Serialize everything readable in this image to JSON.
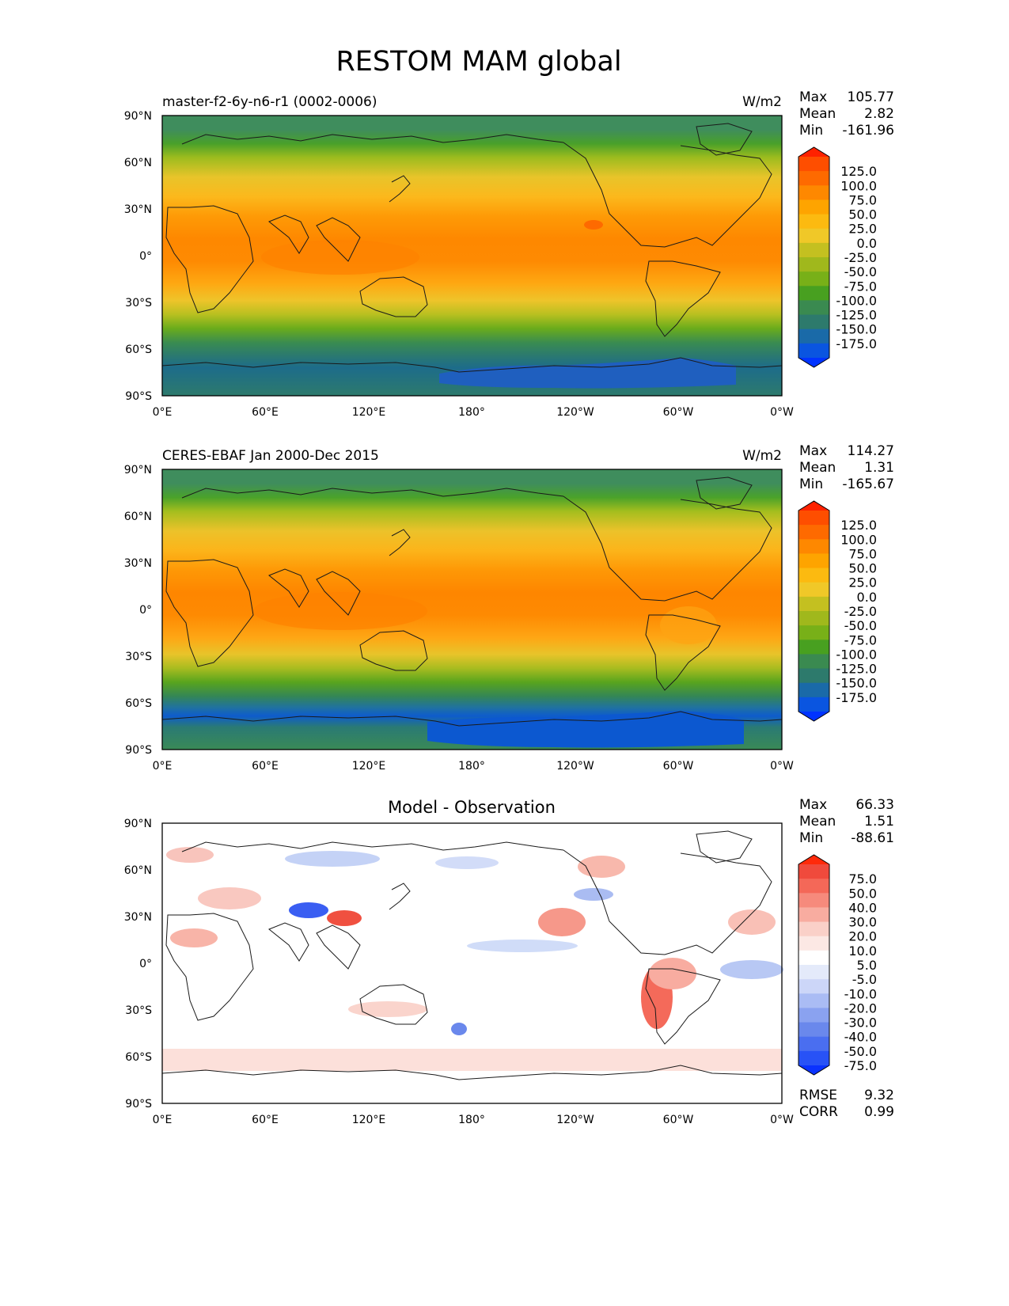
{
  "figure": {
    "title": "RESTOM MAM global"
  },
  "axes": {
    "lon_ticks": [
      "0°E",
      "60°E",
      "120°E",
      "180°",
      "120°W",
      "60°W",
      "0°W"
    ],
    "lat_ticks": [
      "90°N",
      "60°N",
      "30°N",
      "0°",
      "30°S",
      "60°S",
      "90°S"
    ]
  },
  "panels": [
    {
      "title_left": "master-f2-6y-n6-r1 (0002-0006)",
      "title_center": "",
      "units": "W/m2",
      "stats": [
        {
          "label": "Max",
          "value": "105.77"
        },
        {
          "label": "Mean",
          "value": "2.82"
        },
        {
          "label": "Min",
          "value": "-161.96"
        }
      ],
      "colorbar": {
        "labels": [
          "125.0",
          "100.0",
          "75.0",
          "50.0",
          "25.0",
          "0.0",
          "-25.0",
          "-50.0",
          "-75.0",
          "-100.0",
          "-125.0",
          "-150.0",
          "-175.0"
        ],
        "colors": [
          "#fe2200",
          "#fe4e00",
          "#fe6a00",
          "#fe8800",
          "#fea400",
          "#fcba10",
          "#f0c828",
          "#c4c020",
          "#a0b81c",
          "#78b018",
          "#48a020",
          "#3a8a50",
          "#2d7a6c",
          "#1a6aa8",
          "#0a55e0",
          "#0033ff"
        ]
      },
      "footer_stats": []
    },
    {
      "title_left": "CERES-EBAF Jan 2000-Dec 2015",
      "title_center": "",
      "units": "W/m2",
      "stats": [
        {
          "label": "Max",
          "value": "114.27"
        },
        {
          "label": "Mean",
          "value": "1.31"
        },
        {
          "label": "Min",
          "value": "-165.67"
        }
      ],
      "colorbar": {
        "labels": [
          "125.0",
          "100.0",
          "75.0",
          "50.0",
          "25.0",
          "0.0",
          "-25.0",
          "-50.0",
          "-75.0",
          "-100.0",
          "-125.0",
          "-150.0",
          "-175.0"
        ],
        "colors": [
          "#fe2200",
          "#fe4e00",
          "#fe6a00",
          "#fe8800",
          "#fea400",
          "#fcba10",
          "#f0c828",
          "#c4c020",
          "#a0b81c",
          "#78b018",
          "#48a020",
          "#3a8a50",
          "#2d7a6c",
          "#1a6aa8",
          "#0a55e0",
          "#0033ff"
        ]
      },
      "footer_stats": []
    },
    {
      "title_left": "",
      "title_center": "Model - Observation",
      "units": "",
      "stats": [
        {
          "label": "Max",
          "value": "66.33"
        },
        {
          "label": "Mean",
          "value": "1.51"
        },
        {
          "label": "Min",
          "value": "-88.61"
        }
      ],
      "colorbar": {
        "labels": [
          "75.0",
          "50.0",
          "40.0",
          "30.0",
          "20.0",
          "10.0",
          "5.0",
          "-5.0",
          "-10.0",
          "-20.0",
          "-30.0",
          "-40.0",
          "-50.0",
          "-75.0"
        ],
        "colors": [
          "#ff2a0a",
          "#f04a3c",
          "#f46858",
          "#f68a7c",
          "#f8aca0",
          "#fad0c8",
          "#fce8e4",
          "#ffffff",
          "#e4eafa",
          "#ccd6f8",
          "#aabcf4",
          "#8aa2f0",
          "#6a88ec",
          "#4a6ef0",
          "#2852f6",
          "#0a32ff"
        ]
      },
      "footer_stats": [
        {
          "label": "RMSE",
          "value": "9.32"
        },
        {
          "label": "CORR",
          "value": "0.99"
        }
      ]
    }
  ]
}
